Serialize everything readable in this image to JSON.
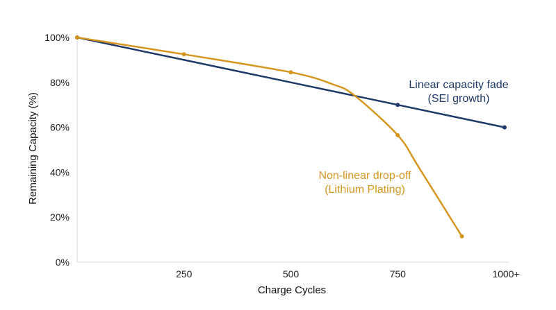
{
  "chart_data": {
    "type": "line",
    "title": "",
    "xlabel": "Charge Cycles",
    "ylabel": "Remaining Capacity (%)",
    "xlim": [
      0,
      1000
    ],
    "ylim": [
      0,
      100
    ],
    "grid": false,
    "x_ticks": [
      {
        "value": 250,
        "label": "250"
      },
      {
        "value": 500,
        "label": "500"
      },
      {
        "value": 750,
        "label": "750"
      },
      {
        "value": 1000,
        "label": "1000+"
      }
    ],
    "y_ticks": [
      {
        "value": 0,
        "label": "0%"
      },
      {
        "value": 20,
        "label": "20%"
      },
      {
        "value": 40,
        "label": "40%"
      },
      {
        "value": 60,
        "label": "60%"
      },
      {
        "value": 80,
        "label": "80%"
      },
      {
        "value": 100,
        "label": "100%"
      }
    ],
    "series": [
      {
        "color": "#1f3a68",
        "x": [
          0,
          750,
          1000
        ],
        "y": [
          100,
          70,
          60
        ],
        "curve": [
          [
            0,
            100
          ],
          [
            250,
            90
          ],
          [
            500,
            80
          ],
          [
            750,
            70
          ],
          [
            1000,
            60
          ]
        ]
      },
      {
        "color": "#d4961f",
        "x": [
          0,
          250,
          500,
          750,
          900
        ],
        "y": [
          100,
          92.5,
          84.5,
          56.5,
          11.5
        ],
        "curve": [
          [
            0,
            100
          ],
          [
            250,
            92.5
          ],
          [
            500,
            84.5
          ],
          [
            600,
            79
          ],
          [
            650,
            74
          ],
          [
            750,
            56.5
          ],
          [
            800,
            42
          ],
          [
            900,
            11.5
          ]
        ]
      }
    ],
    "annotations": [
      {
        "lines": [
          "Linear capacity fade",
          "(SEI growth)"
        ],
        "color": "#1f3a68"
      },
      {
        "lines": [
          "Non-linear drop-off",
          "(Lithium Plating)"
        ],
        "color": "#d4961f"
      }
    ]
  }
}
